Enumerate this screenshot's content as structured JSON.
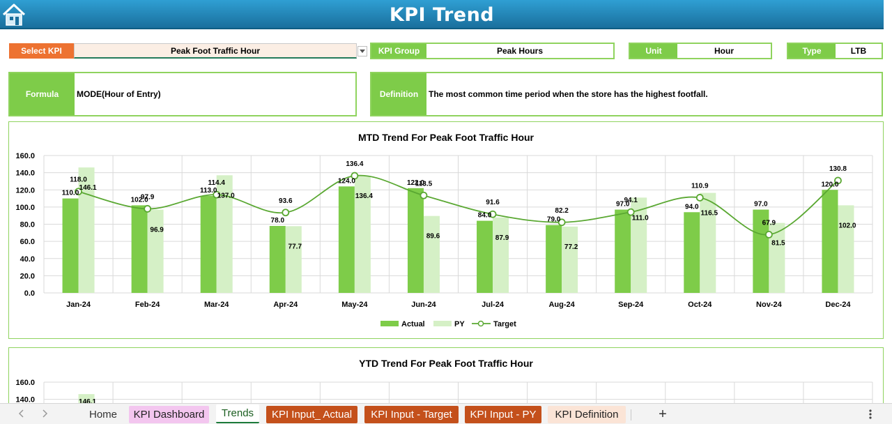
{
  "header": {
    "title": "KPI Trend",
    "home_icon": "home-icon"
  },
  "kpi": {
    "select_label": "Select KPI",
    "select_value": "Peak Foot Traffic Hour",
    "group_label": "KPI Group",
    "group_value": "Peak Hours",
    "unit_label": "Unit",
    "unit_value": "Hour",
    "type_label": "Type",
    "type_value": "LTB",
    "formula_label": "Formula",
    "formula_value": "MODE(Hour of Entry)",
    "definition_label": "Definition",
    "definition_value": "The most common time period when the store has the highest footfall."
  },
  "colors": {
    "actual": "#7ecc49",
    "py": "#d5f0c6",
    "target": "#5aa832",
    "accent_orange": "#ed7231",
    "banner": "#1f7fb3"
  },
  "chart_data": [
    {
      "type": "bar",
      "title": "MTD Trend For Peak Foot Traffic Hour",
      "categories": [
        "Jan-24",
        "Feb-24",
        "Mar-24",
        "Apr-24",
        "May-24",
        "Jun-24",
        "Jul-24",
        "Aug-24",
        "Sep-24",
        "Oct-24",
        "Nov-24",
        "Dec-24"
      ],
      "series": [
        {
          "name": "Actual",
          "type": "bar",
          "values": [
            110.0,
            102.0,
            113.0,
            78.0,
            124.0,
            122.0,
            84.0,
            79.0,
            97.0,
            94.0,
            97.0,
            120.0
          ]
        },
        {
          "name": "PY",
          "type": "bar",
          "values": [
            146.1,
            96.9,
            137.0,
            77.7,
            136.4,
            89.6,
            87.9,
            77.2,
            111.0,
            116.5,
            81.5,
            102.0
          ]
        },
        {
          "name": "Target",
          "type": "line",
          "values": [
            118.0,
            97.9,
            114.4,
            93.6,
            136.4,
            113.5,
            91.6,
            82.2,
            94.1,
            110.9,
            67.9,
            130.8
          ]
        }
      ],
      "ylim": [
        0,
        160
      ],
      "yticks": [
        "0.0",
        "20.0",
        "40.0",
        "60.0",
        "80.0",
        "100.0",
        "120.0",
        "140.0",
        "160.0"
      ],
      "legend": "bottom",
      "grid": true
    },
    {
      "type": "bar",
      "title": "YTD Trend For Peak Foot Traffic Hour",
      "yticks_visible": [
        "140.0",
        "160.0"
      ],
      "ylim": [
        0,
        160
      ],
      "partial_visible": true,
      "first_value_label": "146.1"
    }
  ],
  "tabs": {
    "home": "Home",
    "dashboard": "KPI Dashboard",
    "trends": "Trends",
    "input_actual": "KPI Input_ Actual",
    "input_target": "KPI Input - Target",
    "input_py": "KPI Input - PY",
    "definition": "KPI Definition",
    "add": "+"
  }
}
